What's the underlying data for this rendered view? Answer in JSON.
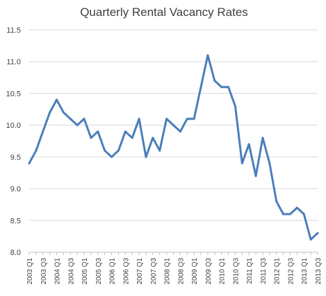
{
  "chart_data": {
    "type": "line",
    "title": "Quarterly Rental Vacancy Rates",
    "xlabel": "",
    "ylabel": "",
    "ylim": [
      8.0,
      11.5
    ],
    "ytick_step": 0.5,
    "grid": true,
    "line_color": "#4a7ebb",
    "x": [
      "2003 Q1",
      "2003 Q2",
      "2003 Q3",
      "2003 Q4",
      "2004 Q1",
      "2004 Q2",
      "2004 Q3",
      "2004 Q4",
      "2005 Q1",
      "2005 Q2",
      "2005 Q3",
      "2005 Q4",
      "2006 Q1",
      "2006 Q2",
      "2006 Q3",
      "2006 Q4",
      "2007 Q1",
      "2007 Q2",
      "2007 Q3",
      "2007 Q4",
      "2008 Q1",
      "2008 Q2",
      "2008 Q3",
      "2008 Q4",
      "2009 Q1",
      "2009 Q2",
      "2009 Q3",
      "2009 Q4",
      "2010 Q1",
      "2010 Q2",
      "2010 Q3",
      "2010 Q4",
      "2011 Q1",
      "2011 Q2",
      "2011 Q3",
      "2011 Q4",
      "2012 Q1",
      "2012 Q2",
      "2012 Q3",
      "2012 Q4",
      "2013 Q1",
      "2013 Q2",
      "2013 Q3"
    ],
    "x_tick_labels": [
      "2003 Q1",
      "2003 Q3",
      "2004 Q1",
      "2004 Q3",
      "2005 Q1",
      "2005 Q3",
      "2006 Q1",
      "2006 Q3",
      "2007 Q1",
      "2007 Q3",
      "2008 Q1",
      "2008 Q3",
      "2009 Q1",
      "2009 Q3",
      "2010 Q1",
      "2010 Q3",
      "2011 Q1",
      "2011 Q3",
      "2012 Q1",
      "2012 Q3",
      "2013 Q1",
      "2013 Q3"
    ],
    "series": [
      {
        "values": [
          9.4,
          9.6,
          9.9,
          10.2,
          10.4,
          10.2,
          10.1,
          10.0,
          10.1,
          9.8,
          9.9,
          9.6,
          9.5,
          9.6,
          9.9,
          9.8,
          10.1,
          9.5,
          9.8,
          9.6,
          10.1,
          10.0,
          9.9,
          10.1,
          10.1,
          10.6,
          11.1,
          10.7,
          10.6,
          10.6,
          10.3,
          9.4,
          9.7,
          9.2,
          9.8,
          9.4,
          8.8,
          8.6,
          8.6,
          8.7,
          8.6,
          8.2,
          8.3
        ]
      }
    ]
  }
}
